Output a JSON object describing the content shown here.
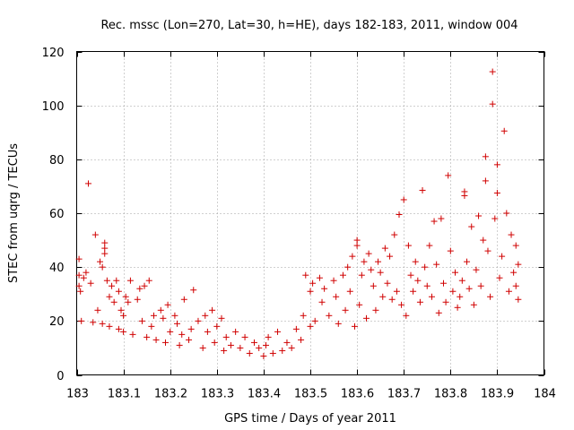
{
  "chart_data": {
    "type": "scatter",
    "title": "Rec. mssc (Lon=270, Lat=30, h=HE), days 182-183, 2011, window 004",
    "xlabel": "GPS time / Days of year 2011",
    "ylabel": "STEC from uqrg / TECUs",
    "xlim": [
      183,
      184
    ],
    "ylim": [
      0,
      120
    ],
    "xticks": [
      183,
      183.1,
      183.2,
      183.3,
      183.4,
      183.5,
      183.6,
      183.7,
      183.8,
      183.9,
      184
    ],
    "xtick_labels": [
      "183",
      "183.1",
      "183.2",
      "183.3",
      "183.4",
      "183.5",
      "183.6",
      "183.7",
      "183.8",
      "183.9",
      "184"
    ],
    "yticks": [
      0,
      20,
      40,
      60,
      80,
      100,
      120
    ],
    "ytick_labels": [
      "0",
      "20",
      "40",
      "60",
      "80",
      "100",
      "120"
    ],
    "grid": true,
    "marker": "+",
    "color": "#d00000",
    "series": [
      {
        "name": "STEC",
        "points": [
          [
            183.005,
            43
          ],
          [
            183.005,
            37
          ],
          [
            183.005,
            33
          ],
          [
            183.008,
            31
          ],
          [
            183.01,
            20
          ],
          [
            183.015,
            36
          ],
          [
            183.02,
            38
          ],
          [
            183.025,
            71
          ],
          [
            183.03,
            34
          ],
          [
            183.035,
            19.5
          ],
          [
            183.04,
            52
          ],
          [
            183.045,
            24
          ],
          [
            183.05,
            42
          ],
          [
            183.055,
            40
          ],
          [
            183.055,
            19
          ],
          [
            183.06,
            49
          ],
          [
            183.06,
            47
          ],
          [
            183.06,
            45
          ],
          [
            183.065,
            35
          ],
          [
            183.07,
            29
          ],
          [
            183.07,
            18
          ],
          [
            183.075,
            33
          ],
          [
            183.08,
            27
          ],
          [
            183.085,
            35
          ],
          [
            183.09,
            31
          ],
          [
            183.09,
            17
          ],
          [
            183.095,
            24
          ],
          [
            183.1,
            16
          ],
          [
            183.1,
            22
          ],
          [
            183.105,
            29
          ],
          [
            183.11,
            27
          ],
          [
            183.115,
            35
          ],
          [
            183.12,
            15
          ],
          [
            183.13,
            28
          ],
          [
            183.135,
            32
          ],
          [
            183.14,
            20
          ],
          [
            183.145,
            33
          ],
          [
            183.15,
            14
          ],
          [
            183.155,
            35
          ],
          [
            183.16,
            18
          ],
          [
            183.165,
            22
          ],
          [
            183.17,
            13
          ],
          [
            183.18,
            24
          ],
          [
            183.185,
            21
          ],
          [
            183.19,
            12
          ],
          [
            183.195,
            26
          ],
          [
            183.2,
            16
          ],
          [
            183.21,
            22
          ],
          [
            183.215,
            19
          ],
          [
            183.22,
            11
          ],
          [
            183.225,
            15
          ],
          [
            183.23,
            28
          ],
          [
            183.24,
            13
          ],
          [
            183.245,
            17
          ],
          [
            183.25,
            31.5
          ],
          [
            183.26,
            20
          ],
          [
            183.27,
            10
          ],
          [
            183.275,
            22
          ],
          [
            183.28,
            16
          ],
          [
            183.29,
            24
          ],
          [
            183.295,
            12
          ],
          [
            183.3,
            18
          ],
          [
            183.31,
            21
          ],
          [
            183.315,
            9
          ],
          [
            183.32,
            14
          ],
          [
            183.33,
            11
          ],
          [
            183.34,
            16
          ],
          [
            183.35,
            10
          ],
          [
            183.36,
            14
          ],
          [
            183.37,
            8
          ],
          [
            183.38,
            12
          ],
          [
            183.39,
            10
          ],
          [
            183.4,
            7
          ],
          [
            183.405,
            11
          ],
          [
            183.41,
            14
          ],
          [
            183.42,
            8
          ],
          [
            183.43,
            16
          ],
          [
            183.44,
            9
          ],
          [
            183.45,
            12
          ],
          [
            183.46,
            10
          ],
          [
            183.47,
            17
          ],
          [
            183.48,
            13
          ],
          [
            183.485,
            22
          ],
          [
            183.49,
            37
          ],
          [
            183.5,
            18
          ],
          [
            183.5,
            31
          ],
          [
            183.505,
            34
          ],
          [
            183.51,
            20
          ],
          [
            183.52,
            36
          ],
          [
            183.525,
            27
          ],
          [
            183.53,
            32
          ],
          [
            183.54,
            22
          ],
          [
            183.55,
            35
          ],
          [
            183.555,
            29
          ],
          [
            183.56,
            19
          ],
          [
            183.57,
            37
          ],
          [
            183.575,
            24
          ],
          [
            183.58,
            40
          ],
          [
            183.585,
            31
          ],
          [
            183.59,
            44
          ],
          [
            183.595,
            18
          ],
          [
            183.6,
            50
          ],
          [
            183.6,
            48
          ],
          [
            183.605,
            26
          ],
          [
            183.61,
            37
          ],
          [
            183.615,
            42
          ],
          [
            183.62,
            21
          ],
          [
            183.625,
            45
          ],
          [
            183.63,
            39
          ],
          [
            183.635,
            33
          ],
          [
            183.64,
            24
          ],
          [
            183.645,
            42
          ],
          [
            183.65,
            38
          ],
          [
            183.655,
            29
          ],
          [
            183.66,
            47
          ],
          [
            183.665,
            34
          ],
          [
            183.67,
            44
          ],
          [
            183.675,
            28
          ],
          [
            183.68,
            52
          ],
          [
            183.685,
            31
          ],
          [
            183.69,
            59.5
          ],
          [
            183.695,
            26
          ],
          [
            183.7,
            65
          ],
          [
            183.705,
            22
          ],
          [
            183.71,
            48
          ],
          [
            183.715,
            37
          ],
          [
            183.72,
            31
          ],
          [
            183.725,
            42
          ],
          [
            183.73,
            35
          ],
          [
            183.735,
            27
          ],
          [
            183.74,
            68.5
          ],
          [
            183.745,
            40
          ],
          [
            183.75,
            33
          ],
          [
            183.755,
            48
          ],
          [
            183.76,
            29
          ],
          [
            183.765,
            57
          ],
          [
            183.77,
            41
          ],
          [
            183.775,
            23
          ],
          [
            183.78,
            58
          ],
          [
            183.785,
            34
          ],
          [
            183.79,
            27
          ],
          [
            183.795,
            74
          ],
          [
            183.8,
            46
          ],
          [
            183.805,
            31
          ],
          [
            183.81,
            38
          ],
          [
            183.815,
            25
          ],
          [
            183.82,
            29
          ],
          [
            183.825,
            35
          ],
          [
            183.83,
            68
          ],
          [
            183.83,
            66.5
          ],
          [
            183.835,
            42
          ],
          [
            183.84,
            32
          ],
          [
            183.845,
            55
          ],
          [
            183.85,
            26
          ],
          [
            183.855,
            39
          ],
          [
            183.86,
            59
          ],
          [
            183.865,
            33
          ],
          [
            183.87,
            50
          ],
          [
            183.875,
            81
          ],
          [
            183.875,
            72
          ],
          [
            183.88,
            46
          ],
          [
            183.885,
            29
          ],
          [
            183.89,
            112.5
          ],
          [
            183.89,
            100.5
          ],
          [
            183.895,
            58
          ],
          [
            183.9,
            78
          ],
          [
            183.9,
            67.5
          ],
          [
            183.905,
            36
          ],
          [
            183.91,
            44
          ],
          [
            183.915,
            90.5
          ],
          [
            183.92,
            60
          ],
          [
            183.925,
            31
          ],
          [
            183.93,
            52
          ],
          [
            183.935,
            38
          ],
          [
            183.94,
            48
          ],
          [
            183.94,
            33
          ],
          [
            183.945,
            41
          ],
          [
            183.945,
            28
          ]
        ]
      }
    ]
  }
}
